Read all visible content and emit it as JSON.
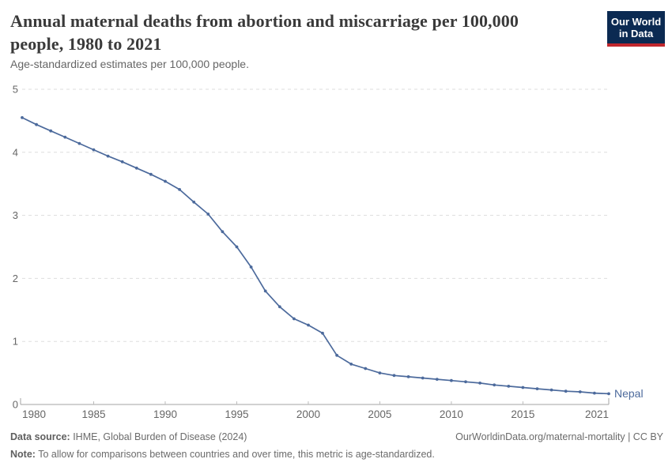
{
  "header": {
    "title": "Annual maternal deaths from abortion and miscarriage per 100,000 people, 1980 to 2021",
    "subtitle": "Age-standardized estimates per 100,000 people.",
    "logo": {
      "line1": "Our World",
      "line2": "in Data"
    }
  },
  "chart_data": {
    "type": "line",
    "title": "Annual maternal deaths from abortion and miscarriage per 100,000 people, 1980 to 2021",
    "subtitle": "Age-standardized estimates per 100,000 people.",
    "xlabel": "",
    "ylabel": "",
    "grid": "horizontal-dashed",
    "legend_position": "end-of-line-label",
    "ylim": [
      0,
      5
    ],
    "yticks": [
      0,
      1,
      2,
      3,
      4,
      5
    ],
    "xticks": [
      1980,
      1985,
      1990,
      1995,
      2000,
      2005,
      2010,
      2015,
      2021
    ],
    "x": [
      1980,
      1981,
      1982,
      1983,
      1984,
      1985,
      1986,
      1987,
      1988,
      1989,
      1990,
      1991,
      1992,
      1993,
      1994,
      1995,
      1996,
      1997,
      1998,
      1999,
      2000,
      2001,
      2002,
      2003,
      2004,
      2005,
      2006,
      2007,
      2008,
      2009,
      2010,
      2011,
      2012,
      2013,
      2014,
      2015,
      2016,
      2017,
      2018,
      2019,
      2020,
      2021
    ],
    "series": [
      {
        "name": "Nepal",
        "color": "#4c6a9c",
        "values": [
          4.55,
          4.44,
          4.34,
          4.24,
          4.14,
          4.04,
          3.94,
          3.85,
          3.75,
          3.65,
          3.54,
          3.41,
          3.21,
          3.02,
          2.74,
          2.5,
          2.18,
          1.8,
          1.55,
          1.36,
          1.26,
          1.13,
          0.78,
          0.64,
          0.57,
          0.5,
          0.46,
          0.44,
          0.42,
          0.4,
          0.38,
          0.36,
          0.34,
          0.31,
          0.29,
          0.27,
          0.25,
          0.23,
          0.21,
          0.2,
          0.18,
          0.17
        ]
      }
    ]
  },
  "colors": {
    "line": "#4c6a9c",
    "gridline": "#dddddd",
    "axis": "#a3a3a3",
    "tick": "#bbbbbb",
    "tick_label": "#666666",
    "logo_bg": "#0b2a52",
    "logo_red": "#c0272d"
  },
  "footer": {
    "source_label": "Data source:",
    "source_text": " IHME, Global Burden of Disease (2024)",
    "link_text": "OurWorldinData.org/maternal-mortality | CC BY",
    "note_label": "Note:",
    "note_text": " To allow for comparisons between countries and over time, this metric is age-standardized."
  }
}
